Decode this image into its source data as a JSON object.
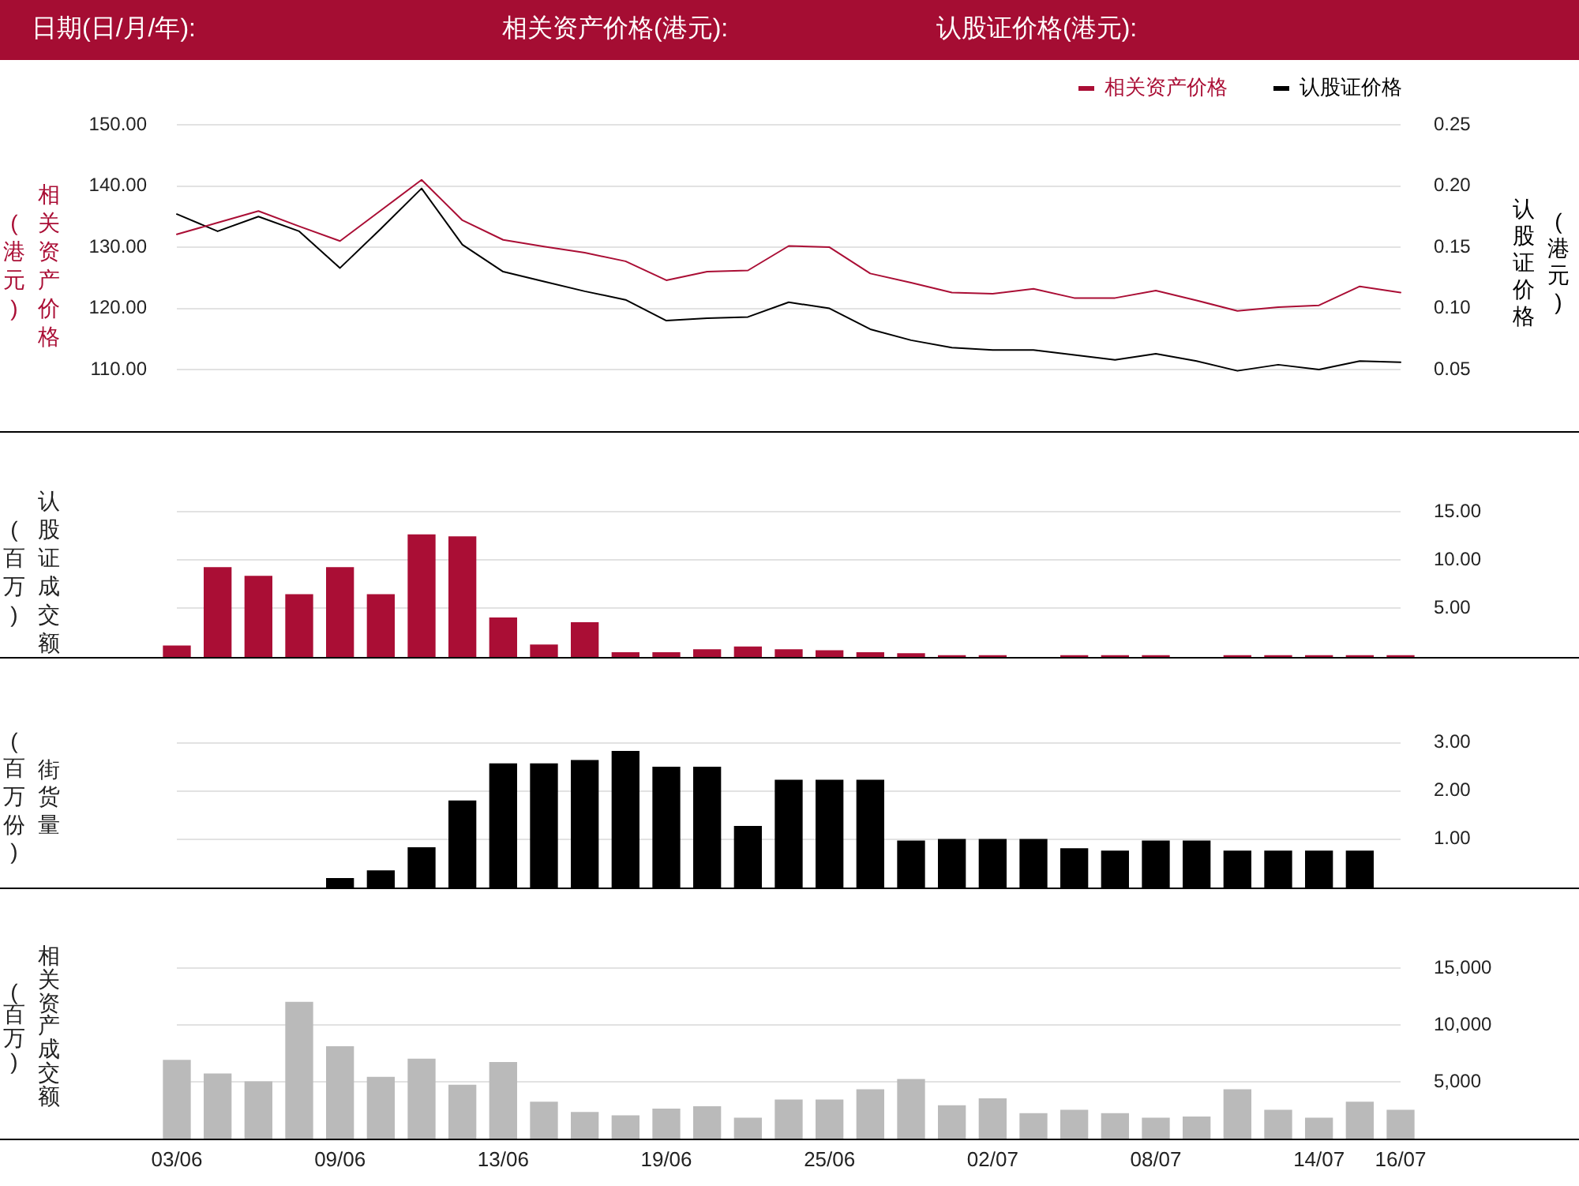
{
  "chart_data": [
    {
      "type": "line",
      "annotations": [
        "日期(日/月/年):",
        "相关资产价格(港元):",
        "认股证价格(港元):"
      ],
      "ylabel": "相关资产价格(港元)",
      "y2label": "认股证价格(港元)",
      "categories": [
        null,
        null,
        null,
        null,
        null,
        null,
        null,
        null,
        null,
        null,
        null,
        null,
        null,
        null,
        null,
        null,
        null,
        null,
        null,
        null,
        null,
        null,
        null,
        null,
        null,
        null,
        null,
        null,
        null,
        null,
        null
      ],
      "series": [
        {
          "name": "相关资产价格",
          "color": "#aa0e35",
          "values": [
            132.1,
            134.0,
            135.9,
            133.4,
            131.0,
            136.0,
            141.0,
            134.4,
            131.2,
            130.1,
            129.1,
            127.7,
            124.6,
            126.0,
            126.2,
            130.2,
            130.0,
            125.7,
            124.2,
            122.6,
            122.4,
            123.2,
            121.7,
            121.7,
            122.9,
            121.3,
            119.6,
            120.2,
            120.5,
            123.6,
            122.6
          ]
        },
        {
          "name": "认股证价格",
          "color": "#000000",
          "axis": "y2",
          "values": [
            0.177,
            0.163,
            0.175,
            0.163,
            0.133,
            0.165,
            0.198,
            0.152,
            0.13,
            0.122,
            0.114,
            0.107,
            0.09,
            0.092,
            0.093,
            0.105,
            0.1,
            0.083,
            0.074,
            0.068,
            0.066,
            0.066,
            0.062,
            0.058,
            0.063,
            0.057,
            0.049,
            0.054,
            0.05,
            0.057,
            0.056
          ]
        }
      ],
      "ylim": [
        100,
        150
      ],
      "yticks": [
        {
          "value": 110,
          "label": "110.00"
        },
        {
          "value": 120,
          "label": "120.00"
        },
        {
          "value": 130,
          "label": "130.00"
        },
        {
          "value": 140,
          "label": "140.00"
        },
        {
          "value": 150,
          "label": "150.00"
        }
      ],
      "y2lim": [
        0,
        0.25
      ],
      "y2ticks": [
        0.05,
        {
          "value": 0.1,
          "label": "0.10"
        },
        0.15,
        {
          "value": 0.2,
          "label": "0.20"
        },
        0.25
      ],
      "grid": "y",
      "legend": "top right",
      "marker": "none",
      "tick_labels": "y"
    },
    {
      "type": "bar",
      "ylabel": "认股证成交额(百万)",
      "categories": [
        null,
        null,
        null,
        null,
        null,
        null,
        null,
        null,
        null,
        null,
        null,
        null,
        null,
        null,
        null,
        null,
        null,
        null,
        null,
        null,
        null,
        null,
        null,
        null,
        null,
        null,
        null,
        null,
        null,
        null,
        null
      ],
      "values": [
        1.1,
        9.2,
        8.3,
        6.4,
        9.2,
        6.4,
        12.6,
        12.4,
        4.0,
        1.2,
        3.5,
        0.4,
        0.4,
        0.7,
        1.0,
        0.7,
        0.6,
        0.4,
        0.3,
        0.1,
        0.1,
        null,
        0.1,
        0.1,
        0.1,
        null,
        0.1,
        0.1,
        0.1,
        0.1,
        0.1
      ],
      "color": "#aa0e35",
      "ylim": [
        0,
        15
      ],
      "yticks": [
        {
          "value": 5,
          "label": "5.00"
        },
        {
          "value": 10,
          "label": "10.00"
        },
        {
          "value": 15,
          "label": "15.00"
        }
      ],
      "grid": "y",
      "tick_labels": "y"
    },
    {
      "type": "bar",
      "ylabel": "街货量(百万份)",
      "categories": [
        null,
        null,
        null,
        null,
        null,
        null,
        null,
        null,
        null,
        null,
        null,
        null,
        null,
        null,
        null,
        null,
        null,
        null,
        null,
        null,
        null,
        null,
        null,
        null,
        null,
        null,
        null,
        null,
        null,
        null,
        null
      ],
      "values": [
        null,
        null,
        null,
        null,
        0.18,
        0.34,
        0.82,
        1.79,
        2.56,
        2.56,
        2.63,
        2.82,
        2.49,
        2.49,
        1.26,
        2.22,
        2.22,
        2.22,
        0.96,
        0.99,
        0.99,
        0.99,
        0.8,
        0.75,
        0.96,
        0.96,
        0.75,
        0.75,
        0.75,
        0.75,
        null
      ],
      "color": "#000000",
      "ylim": [
        0,
        3
      ],
      "yticks": [
        {
          "value": 1,
          "label": "1.00"
        },
        {
          "value": 2,
          "label": "2.00"
        },
        {
          "value": 3,
          "label": "3.00"
        }
      ],
      "grid": "y",
      "tick_labels": "y"
    },
    {
      "type": "bar",
      "ylabel": "相关资产成交额(百万)",
      "categories": [
        "03/06",
        null,
        null,
        null,
        "09/06",
        null,
        null,
        null,
        "13/06",
        null,
        null,
        null,
        "19/06",
        null,
        null,
        null,
        "25/06",
        null,
        null,
        null,
        "02/07",
        null,
        null,
        null,
        "08/07",
        null,
        null,
        null,
        "14/07",
        null,
        "16/07"
      ],
      "values": [
        6900,
        5700,
        5000,
        12000,
        8100,
        5400,
        7000,
        4700,
        6700,
        3200,
        2300,
        2000,
        2600,
        2800,
        1800,
        3400,
        3400,
        4300,
        5200,
        2900,
        3500,
        2200,
        2500,
        2200,
        1800,
        1900,
        4300,
        2500,
        1800,
        3200,
        2500
      ],
      "color": "#bababa",
      "ylim": [
        0,
        15000
      ],
      "yticks": [
        {
          "value": 5000,
          "label": "5,000"
        },
        {
          "value": 10000,
          "label": "10,000"
        },
        {
          "value": 15000,
          "label": "15,000"
        }
      ],
      "grid": "y"
    }
  ]
}
